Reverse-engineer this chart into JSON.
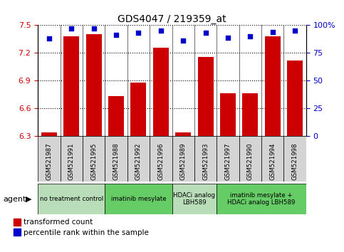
{
  "title": "GDS4047 / 219359_at",
  "samples": [
    "GSM521987",
    "GSM521991",
    "GSM521995",
    "GSM521988",
    "GSM521992",
    "GSM521996",
    "GSM521989",
    "GSM521993",
    "GSM521997",
    "GSM521990",
    "GSM521994",
    "GSM521998"
  ],
  "bar_values": [
    6.34,
    7.38,
    7.4,
    6.73,
    6.88,
    7.26,
    6.34,
    7.16,
    6.76,
    6.76,
    7.38,
    7.12
  ],
  "dot_values": [
    88,
    97,
    97,
    91,
    93,
    95,
    86,
    93,
    89,
    90,
    94,
    95
  ],
  "ylim_left": [
    6.3,
    7.5
  ],
  "ylim_right": [
    0,
    100
  ],
  "yticks_left": [
    6.3,
    6.6,
    6.9,
    7.2,
    7.5
  ],
  "yticks_right": [
    0,
    25,
    50,
    75,
    100
  ],
  "bar_color": "#cc0000",
  "dot_color": "#0000cc",
  "bar_baseline": 6.3,
  "agents": [
    {
      "label": "no treatment control",
      "start": 0,
      "end": 3,
      "color": "#b8ddb8"
    },
    {
      "label": "imatinib mesylate",
      "start": 3,
      "end": 6,
      "color": "#66cc66"
    },
    {
      "label": "HDACi analog\nLBH589",
      "start": 6,
      "end": 8,
      "color": "#b8ddb8"
    },
    {
      "label": "imatinib mesylate +\nHDACi analog LBH589",
      "start": 8,
      "end": 12,
      "color": "#66cc66"
    }
  ],
  "agent_label": "agent",
  "legend_bar_label": "transformed count",
  "legend_dot_label": "percentile rank within the sample",
  "bg_color": "#ffffff"
}
